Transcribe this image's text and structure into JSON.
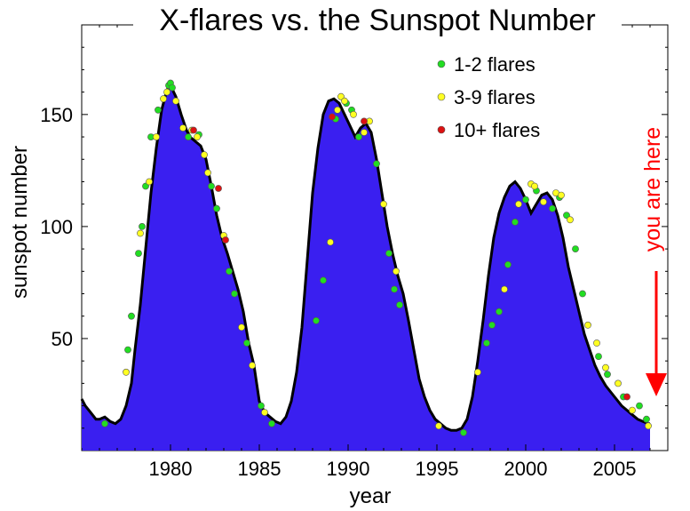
{
  "chart_data": {
    "type": "area",
    "title": "X-flares vs. the Sunspot Number",
    "xlabel": "year",
    "ylabel": "sunspot number",
    "xlim": [
      1975,
      2008
    ],
    "ylim": [
      0,
      190
    ],
    "x_ticks": [
      1980,
      1985,
      1990,
      1995,
      2000,
      2005
    ],
    "y_ticks": [
      50,
      100,
      150
    ],
    "grid": false,
    "legend_position": "top-right",
    "colors": {
      "area_fill": "#3a1ff0",
      "area_outline": "#000000",
      "flares_1_2": "#22dd22",
      "flares_3_9": "#ffff22",
      "flares_10_plus": "#dd1111",
      "annotation": "#ff0000"
    },
    "series": [
      {
        "name": "sunspot number",
        "x": [
          1975.0,
          1975.2,
          1975.5,
          1975.8,
          1976.0,
          1976.3,
          1976.6,
          1976.9,
          1977.2,
          1977.5,
          1977.8,
          1978.0,
          1978.3,
          1978.6,
          1978.9,
          1979.2,
          1979.5,
          1979.8,
          1980.0,
          1980.3,
          1980.6,
          1980.9,
          1981.1,
          1981.4,
          1981.7,
          1982.0,
          1982.3,
          1982.6,
          1982.9,
          1983.2,
          1983.5,
          1983.8,
          1984.1,
          1984.4,
          1984.7,
          1985.0,
          1985.3,
          1985.6,
          1985.9,
          1986.2,
          1986.5,
          1986.8,
          1987.1,
          1987.4,
          1987.7,
          1988.0,
          1988.3,
          1988.6,
          1988.9,
          1989.2,
          1989.5,
          1989.8,
          1990.1,
          1990.4,
          1990.7,
          1991.0,
          1991.3,
          1991.6,
          1991.9,
          1992.2,
          1992.5,
          1992.8,
          1993.1,
          1993.4,
          1993.7,
          1994.0,
          1994.3,
          1994.6,
          1994.9,
          1995.2,
          1995.5,
          1995.8,
          1996.1,
          1996.4,
          1996.7,
          1997.0,
          1997.3,
          1997.6,
          1997.9,
          1998.2,
          1998.5,
          1998.8,
          1999.1,
          1999.4,
          1999.7,
          2000.0,
          2000.3,
          2000.6,
          2000.9,
          2001.2,
          2001.5,
          2001.8,
          2002.1,
          2002.4,
          2002.7,
          2003.0,
          2003.3,
          2003.6,
          2003.9,
          2004.2,
          2004.5,
          2004.8,
          2005.1,
          2005.4,
          2005.7,
          2006.0,
          2006.3,
          2006.6,
          2006.9,
          2007.0
        ],
        "values": [
          23,
          20,
          17,
          14,
          14,
          15,
          13,
          12,
          14,
          20,
          30,
          45,
          65,
          90,
          115,
          135,
          152,
          161,
          163,
          158,
          150,
          143,
          140,
          138,
          136,
          130,
          118,
          105,
          95,
          88,
          80,
          72,
          62,
          48,
          38,
          22,
          17,
          15,
          13,
          12,
          15,
          22,
          35,
          55,
          85,
          115,
          135,
          150,
          156,
          157,
          155,
          150,
          145,
          140,
          144,
          146,
          142,
          130,
          115,
          100,
          88,
          78,
          70,
          58,
          45,
          32,
          24,
          18,
          14,
          12,
          10,
          9,
          9,
          10,
          14,
          24,
          40,
          58,
          78,
          95,
          106,
          113,
          118,
          120,
          117,
          112,
          106,
          110,
          114,
          115,
          112,
          105,
          95,
          82,
          72,
          62,
          52,
          45,
          38,
          33,
          29,
          26,
          23,
          20,
          18,
          16,
          14,
          13,
          12,
          12
        ]
      }
    ],
    "flare_events": [
      {
        "name": "1-2 flares",
        "points": [
          [
            1976.3,
            12
          ],
          [
            1977.6,
            45
          ],
          [
            1977.8,
            60
          ],
          [
            1978.2,
            88
          ],
          [
            1978.4,
            100
          ],
          [
            1978.6,
            118
          ],
          [
            1978.9,
            140
          ],
          [
            1979.3,
            152
          ],
          [
            1979.9,
            163
          ],
          [
            1980.0,
            164
          ],
          [
            1980.1,
            162
          ],
          [
            1981.0,
            140
          ],
          [
            1981.6,
            141
          ],
          [
            1982.3,
            118
          ],
          [
            1982.6,
            108
          ],
          [
            1983.3,
            80
          ],
          [
            1983.6,
            70
          ],
          [
            1984.3,
            48
          ],
          [
            1985.1,
            20
          ],
          [
            1985.7,
            12
          ],
          [
            1988.2,
            58
          ],
          [
            1988.6,
            76
          ],
          [
            1989.3,
            148
          ],
          [
            1989.9,
            155
          ],
          [
            1990.2,
            152
          ],
          [
            1990.6,
            140
          ],
          [
            1991.6,
            128
          ],
          [
            1992.3,
            88
          ],
          [
            1992.6,
            72
          ],
          [
            1992.9,
            65
          ],
          [
            1996.5,
            8
          ],
          [
            1997.8,
            48
          ],
          [
            1998.1,
            56
          ],
          [
            1998.5,
            62
          ],
          [
            1999.0,
            83
          ],
          [
            1999.4,
            102
          ],
          [
            2000.0,
            112
          ],
          [
            2000.6,
            116
          ],
          [
            2001.5,
            108
          ],
          [
            2001.9,
            113
          ],
          [
            2002.3,
            105
          ],
          [
            2002.8,
            90
          ],
          [
            2003.2,
            70
          ],
          [
            2004.1,
            42
          ],
          [
            2004.6,
            34
          ],
          [
            2005.5,
            24
          ],
          [
            2006.4,
            20
          ],
          [
            2006.8,
            14
          ]
        ]
      },
      {
        "name": "3-9 flares",
        "points": [
          [
            1977.5,
            35
          ],
          [
            1978.3,
            97
          ],
          [
            1978.8,
            120
          ],
          [
            1979.2,
            140
          ],
          [
            1979.6,
            157
          ],
          [
            1979.8,
            160
          ],
          [
            1980.3,
            156
          ],
          [
            1980.7,
            144
          ],
          [
            1981.2,
            143
          ],
          [
            1981.5,
            140
          ],
          [
            1981.9,
            132
          ],
          [
            1982.1,
            124
          ],
          [
            1983.0,
            96
          ],
          [
            1984.0,
            55
          ],
          [
            1984.6,
            38
          ],
          [
            1985.3,
            17
          ],
          [
            1989.0,
            93
          ],
          [
            1989.4,
            152
          ],
          [
            1989.6,
            158
          ],
          [
            1989.8,
            156
          ],
          [
            1990.3,
            150
          ],
          [
            1990.9,
            142
          ],
          [
            1991.2,
            147
          ],
          [
            1992.0,
            110
          ],
          [
            1992.7,
            80
          ],
          [
            1995.1,
            11
          ],
          [
            1997.3,
            35
          ],
          [
            1998.8,
            72
          ],
          [
            1999.6,
            110
          ],
          [
            2000.3,
            119
          ],
          [
            2000.5,
            118
          ],
          [
            2001.0,
            111
          ],
          [
            2001.7,
            115
          ],
          [
            2002.0,
            114
          ],
          [
            2002.5,
            103
          ],
          [
            2003.5,
            56
          ],
          [
            2004.0,
            48
          ],
          [
            2004.5,
            37
          ],
          [
            2005.2,
            30
          ],
          [
            2006.0,
            18
          ],
          [
            2006.9,
            11
          ]
        ]
      },
      {
        "name": "10+ flares",
        "points": [
          [
            1981.3,
            143
          ],
          [
            1982.7,
            117
          ],
          [
            1983.1,
            94
          ],
          [
            1989.1,
            149
          ],
          [
            1990.9,
            147
          ],
          [
            2005.7,
            24
          ]
        ]
      }
    ],
    "annotations": [
      "you are here"
    ]
  }
}
